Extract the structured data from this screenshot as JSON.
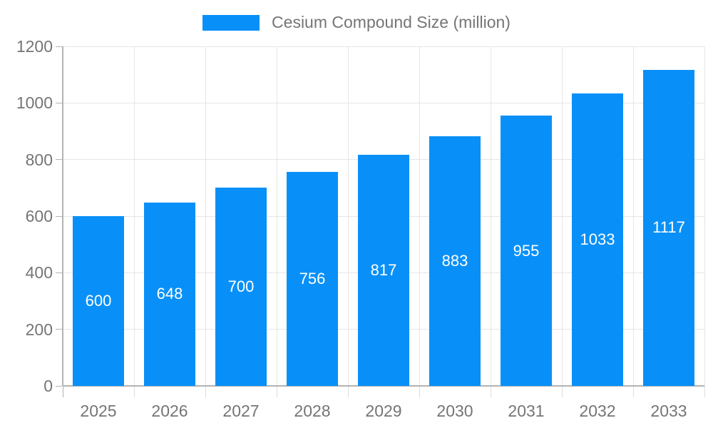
{
  "legend": {
    "label": "Cesium Compound Size (million)"
  },
  "chart_data": {
    "type": "bar",
    "title": "Cesium Compound Size (million)",
    "categories": [
      "2025",
      "2026",
      "2027",
      "2028",
      "2029",
      "2030",
      "2031",
      "2032",
      "2033"
    ],
    "values": [
      600,
      648,
      700,
      756,
      817,
      883,
      955,
      1033,
      1117
    ],
    "xlabel": "",
    "ylabel": "",
    "ylim": [
      0,
      1200
    ],
    "ytick_step": 200,
    "ytick_labels": [
      "0",
      "200",
      "400",
      "600",
      "800",
      "1000",
      "1200"
    ],
    "grid": true,
    "legend_position": "top-center",
    "bar_color": "#0990f8",
    "bar_label_color": "#ffffff",
    "grid_color": "#e6e6e6",
    "axis_color": "#b3b3b3",
    "tick_color": "#dddddd",
    "text_color": "#757575"
  }
}
